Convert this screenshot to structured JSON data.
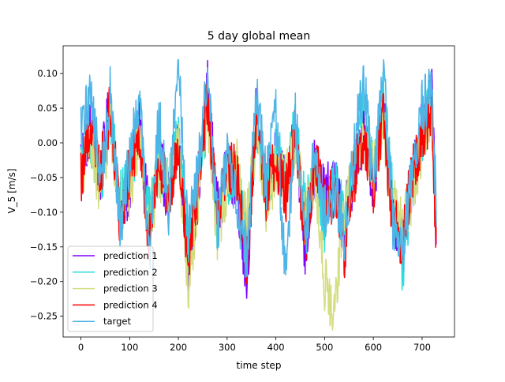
{
  "chart_data": {
    "type": "line",
    "title": "5 day global mean",
    "xlabel": "time step",
    "ylabel": "V_5 [m/s]",
    "xlim": [
      -36.5,
      766.5
    ],
    "ylim": [
      -0.28,
      0.14
    ],
    "xticks": [
      0,
      100,
      200,
      300,
      400,
      500,
      600,
      700
    ],
    "yticks": [
      -0.25,
      -0.2,
      -0.15,
      -0.1,
      -0.05,
      0.0,
      0.05,
      0.1
    ],
    "ytick_labels": [
      "−0.25",
      "−0.20",
      "−0.15",
      "−0.10",
      "−0.05",
      "0.00",
      "0.05",
      "0.10"
    ],
    "legend_position": "lower left",
    "grid": false,
    "n_points": 730,
    "series": [
      {
        "name": "prediction 1",
        "color": "#8000ff",
        "x": [
          0,
          20,
          40,
          60,
          80,
          100,
          120,
          140,
          160,
          180,
          200,
          220,
          240,
          260,
          280,
          300,
          320,
          340,
          360,
          380,
          400,
          420,
          440,
          460,
          480,
          500,
          520,
          540,
          560,
          580,
          600,
          620,
          640,
          660,
          680,
          700,
          720,
          729
        ],
        "values": [
          -0.02,
          0.02,
          -0.05,
          0.06,
          -0.1,
          -0.06,
          0.03,
          -0.12,
          -0.02,
          -0.08,
          0.02,
          -0.18,
          -0.07,
          0.08,
          -0.1,
          -0.04,
          -0.06,
          -0.2,
          0.05,
          -0.08,
          -0.02,
          -0.07,
          0.03,
          -0.16,
          -0.03,
          -0.08,
          -0.05,
          -0.12,
          -0.04,
          0.02,
          -0.06,
          0.05,
          -0.1,
          -0.15,
          -0.05,
          0.02,
          0.09,
          -0.14
        ]
      },
      {
        "name": "prediction 2",
        "color": "#2adddd",
        "x": [
          0,
          20,
          40,
          60,
          80,
          100,
          120,
          140,
          160,
          180,
          200,
          220,
          240,
          260,
          280,
          300,
          320,
          340,
          360,
          380,
          400,
          420,
          440,
          460,
          480,
          500,
          520,
          540,
          560,
          580,
          600,
          620,
          640,
          660,
          680,
          700,
          720,
          729
        ],
        "values": [
          -0.03,
          0.01,
          -0.06,
          0.04,
          -0.08,
          -0.05,
          0.02,
          -0.1,
          -0.03,
          -0.07,
          0.01,
          -0.15,
          -0.06,
          0.05,
          -0.12,
          -0.05,
          -0.04,
          -0.14,
          0.03,
          -0.09,
          -0.01,
          -0.05,
          0.02,
          -0.1,
          -0.04,
          -0.12,
          -0.06,
          -0.1,
          -0.03,
          0.08,
          -0.05,
          0.07,
          -0.08,
          -0.18,
          -0.06,
          0.01,
          0.06,
          -0.14
        ]
      },
      {
        "name": "prediction 3",
        "color": "#d4dd80",
        "x": [
          0,
          20,
          40,
          60,
          80,
          100,
          120,
          140,
          160,
          180,
          200,
          220,
          240,
          260,
          280,
          300,
          320,
          340,
          360,
          380,
          400,
          420,
          440,
          460,
          480,
          500,
          520,
          540,
          560,
          580,
          600,
          620,
          640,
          660,
          680,
          700,
          720,
          729
        ],
        "values": [
          -0.04,
          0.0,
          -0.07,
          0.03,
          -0.09,
          -0.07,
          0.01,
          -0.13,
          -0.04,
          -0.06,
          0.0,
          -0.22,
          -0.08,
          0.04,
          -0.13,
          -0.06,
          -0.03,
          -0.12,
          0.02,
          -0.1,
          -0.03,
          -0.06,
          0.01,
          -0.12,
          -0.05,
          -0.2,
          -0.26,
          -0.09,
          -0.05,
          0.03,
          -0.04,
          0.03,
          -0.09,
          -0.12,
          -0.07,
          0.0,
          0.03,
          -0.09
        ]
      },
      {
        "name": "prediction 4",
        "color": "#ff0000",
        "x": [
          0,
          20,
          40,
          60,
          80,
          100,
          120,
          140,
          160,
          180,
          200,
          220,
          240,
          260,
          280,
          300,
          320,
          340,
          360,
          380,
          400,
          420,
          440,
          460,
          480,
          500,
          520,
          540,
          560,
          580,
          600,
          620,
          640,
          660,
          680,
          700,
          720,
          729
        ],
        "values": [
          -0.05,
          0.03,
          -0.04,
          0.05,
          -0.11,
          -0.04,
          0.02,
          -0.14,
          -0.01,
          -0.09,
          0.01,
          -0.17,
          -0.05,
          0.06,
          -0.11,
          -0.03,
          -0.05,
          -0.18,
          0.04,
          -0.07,
          -0.02,
          -0.08,
          0.02,
          -0.15,
          -0.02,
          -0.09,
          -0.07,
          -0.16,
          -0.05,
          0.01,
          -0.07,
          0.04,
          -0.11,
          -0.14,
          -0.04,
          0.01,
          0.05,
          -0.145
        ]
      },
      {
        "name": "target",
        "color": "#4fb4e6",
        "x": [
          0,
          20,
          40,
          60,
          80,
          100,
          120,
          140,
          160,
          180,
          200,
          220,
          240,
          260,
          280,
          300,
          320,
          340,
          360,
          380,
          400,
          420,
          440,
          460,
          480,
          500,
          520,
          540,
          560,
          580,
          600,
          620,
          640,
          660,
          680,
          700,
          720,
          729
        ],
        "values": [
          0.01,
          0.08,
          -0.06,
          0.07,
          -0.12,
          -0.03,
          0.07,
          -0.16,
          0.04,
          -0.1,
          0.12,
          -0.14,
          -0.04,
          0.1,
          -0.12,
          -0.02,
          -0.08,
          -0.17,
          0.08,
          -0.06,
          0.05,
          -0.2,
          0.04,
          -0.14,
          0.0,
          -0.1,
          -0.08,
          -0.13,
          -0.02,
          0.1,
          -0.07,
          0.11,
          -0.12,
          -0.16,
          -0.03,
          0.05,
          0.08,
          -0.09
        ]
      }
    ]
  }
}
